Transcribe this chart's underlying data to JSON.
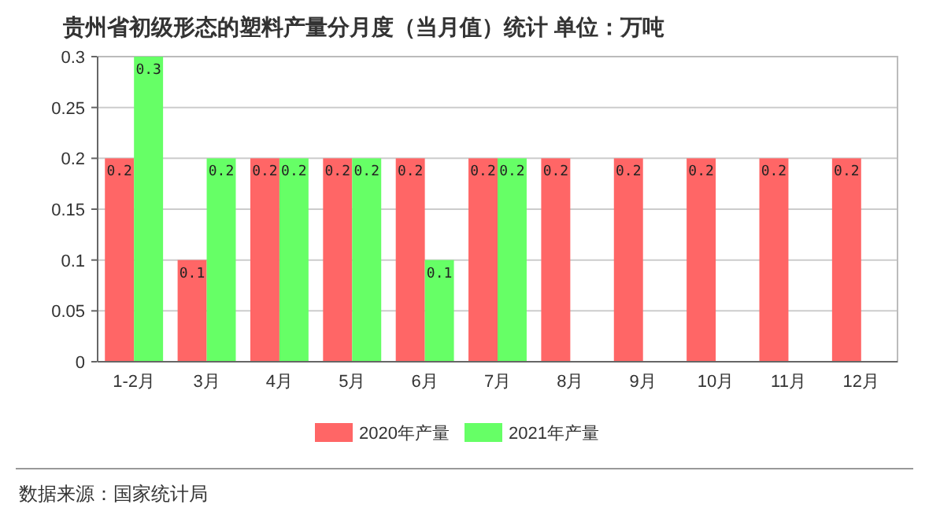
{
  "chart_data": {
    "type": "bar",
    "title": "贵州省初级形态的塑料产量分月度（当月值）统计 单位：万吨",
    "categories": [
      "1-2月",
      "3月",
      "4月",
      "5月",
      "6月",
      "7月",
      "8月",
      "9月",
      "10月",
      "11月",
      "12月"
    ],
    "series": [
      {
        "name": "2020年产量",
        "color": "#ff6666",
        "values": [
          0.2,
          0.1,
          0.2,
          0.2,
          0.2,
          0.2,
          0.2,
          0.2,
          0.2,
          0.2,
          0.2
        ]
      },
      {
        "name": "2021年产量",
        "color": "#66ff66",
        "values": [
          0.3,
          0.2,
          0.2,
          0.2,
          0.1,
          0.2,
          null,
          null,
          null,
          null,
          null
        ]
      }
    ],
    "ylim": [
      0,
      0.3
    ],
    "yticks": [
      0,
      0.05,
      0.1,
      0.15,
      0.2,
      0.25,
      0.3
    ],
    "grid": "y",
    "legend": "bottom",
    "data_labels": true,
    "annotations": [
      "数据来源：国家统计局"
    ]
  }
}
